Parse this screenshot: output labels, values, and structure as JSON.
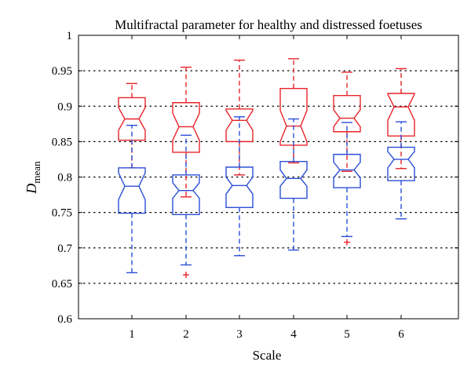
{
  "chart_data": {
    "type": "boxplot",
    "title": "Multifractal parameter for healthy and distressed foetuses",
    "xlabel": "Scale",
    "ylabel_main": "D",
    "ylabel_sub": "mean",
    "categories": [
      "1",
      "2",
      "3",
      "4",
      "5",
      "6"
    ],
    "ylim": [
      0.6,
      1.0
    ],
    "yticks": [
      0.6,
      0.65,
      0.7,
      0.75,
      0.8,
      0.85,
      0.9,
      0.95,
      1.0
    ],
    "ytick_labels": [
      "0.6",
      "0.65",
      "0.7",
      "0.75",
      "0.8",
      "0.85",
      "0.9",
      "0.95",
      "1"
    ],
    "grid": "horizontal dotted",
    "notched": true,
    "series": [
      {
        "color": "#e8242a",
        "boxes": [
          {
            "whisker_low": 0.813,
            "q1": 0.852,
            "median": 0.882,
            "q3": 0.912,
            "whisker_high": 0.932,
            "notch_low": 0.866,
            "notch_high": 0.898,
            "outliers": []
          },
          {
            "whisker_low": 0.772,
            "q1": 0.835,
            "median": 0.871,
            "q3": 0.905,
            "whisker_high": 0.955,
            "notch_low": 0.852,
            "notch_high": 0.89,
            "outliers": [
              0.662
            ]
          },
          {
            "whisker_low": 0.803,
            "q1": 0.85,
            "median": 0.88,
            "q3": 0.896,
            "whisker_high": 0.965,
            "notch_low": 0.866,
            "notch_high": 0.894,
            "outliers": []
          },
          {
            "whisker_low": 0.82,
            "q1": 0.845,
            "median": 0.872,
            "q3": 0.925,
            "whisker_high": 0.967,
            "notch_low": 0.85,
            "notch_high": 0.894,
            "outliers": []
          },
          {
            "whisker_low": 0.808,
            "q1": 0.864,
            "median": 0.883,
            "q3": 0.915,
            "whisker_high": 0.948,
            "notch_low": 0.871,
            "notch_high": 0.895,
            "outliers": [
              0.708
            ]
          },
          {
            "whisker_low": 0.812,
            "q1": 0.858,
            "median": 0.899,
            "q3": 0.918,
            "whisker_high": 0.953,
            "notch_low": 0.88,
            "notch_high": 0.917,
            "outliers": []
          }
        ]
      },
      {
        "color": "#2b4fd8",
        "boxes": [
          {
            "whisker_low": 0.665,
            "q1": 0.749,
            "median": 0.787,
            "q3": 0.813,
            "whisker_high": 0.873,
            "notch_low": 0.768,
            "notch_high": 0.806,
            "outliers": []
          },
          {
            "whisker_low": 0.676,
            "q1": 0.747,
            "median": 0.781,
            "q3": 0.803,
            "whisker_high": 0.859,
            "notch_low": 0.77,
            "notch_high": 0.792,
            "outliers": []
          },
          {
            "whisker_low": 0.689,
            "q1": 0.757,
            "median": 0.788,
            "q3": 0.814,
            "whisker_high": 0.885,
            "notch_low": 0.776,
            "notch_high": 0.8,
            "outliers": []
          },
          {
            "whisker_low": 0.697,
            "q1": 0.77,
            "median": 0.798,
            "q3": 0.822,
            "whisker_high": 0.882,
            "notch_low": 0.787,
            "notch_high": 0.81,
            "outliers": []
          },
          {
            "whisker_low": 0.716,
            "q1": 0.785,
            "median": 0.81,
            "q3": 0.832,
            "whisker_high": 0.877,
            "notch_low": 0.799,
            "notch_high": 0.821,
            "outliers": []
          },
          {
            "whisker_low": 0.741,
            "q1": 0.795,
            "median": 0.825,
            "q3": 0.842,
            "whisker_high": 0.878,
            "notch_low": 0.813,
            "notch_high": 0.836,
            "outliers": []
          }
        ]
      }
    ]
  }
}
